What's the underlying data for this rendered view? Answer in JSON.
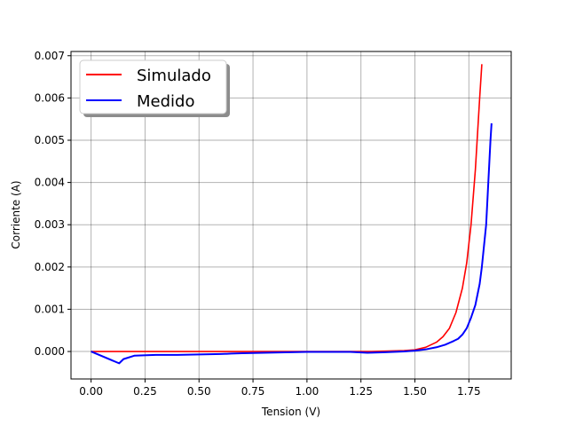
{
  "chart_data": {
    "type": "line",
    "title": "",
    "xlabel": "Tension (V)",
    "ylabel": "Corriente (A)",
    "xlim": [
      -0.093,
      1.946
    ],
    "ylim": [
      -0.00065,
      0.0071
    ],
    "x_ticks": [
      0.0,
      0.25,
      0.5,
      0.75,
      1.0,
      1.25,
      1.5,
      1.75
    ],
    "x_tick_labels": [
      "0.00",
      "0.25",
      "0.50",
      "0.75",
      "1.00",
      "1.25",
      "1.50",
      "1.75"
    ],
    "y_ticks": [
      0.0,
      0.001,
      0.002,
      0.003,
      0.004,
      0.005,
      0.006,
      0.007
    ],
    "y_tick_labels": [
      "0.000",
      "0.001",
      "0.002",
      "0.003",
      "0.004",
      "0.005",
      "0.006",
      "0.007"
    ],
    "grid": true,
    "legend_position": "top-left",
    "series": [
      {
        "name": "Simulado",
        "color": "#ff0000",
        "x": [
          0.0,
          0.5,
          1.0,
          1.3,
          1.45,
          1.5,
          1.55,
          1.6,
          1.63,
          1.66,
          1.69,
          1.72,
          1.74,
          1.76,
          1.78,
          1.8,
          1.81
        ],
        "y": [
          0.0,
          0.0,
          0.0,
          0.0,
          2e-05,
          4e-05,
          0.0001,
          0.00022,
          0.00035,
          0.00055,
          0.00092,
          0.0015,
          0.0021,
          0.003,
          0.0043,
          0.006,
          0.0068
        ]
      },
      {
        "name": "Medido",
        "color": "#0000ff",
        "x": [
          0.0,
          0.13,
          0.15,
          0.2,
          0.3,
          0.4,
          0.5,
          0.6,
          0.65,
          0.7,
          0.8,
          0.9,
          1.0,
          1.1,
          1.2,
          1.28,
          1.35,
          1.45,
          1.5,
          1.55,
          1.6,
          1.64,
          1.68,
          1.7,
          1.72,
          1.74,
          1.76,
          1.78,
          1.8,
          1.81,
          1.82,
          1.83,
          1.835,
          1.84,
          1.845,
          1.85,
          1.855
        ],
        "y": [
          0.0,
          -0.00028,
          -0.00018,
          -0.0001,
          -8e-05,
          -8e-05,
          -7e-05,
          -6e-05,
          -5e-05,
          -4e-05,
          -3e-05,
          -2e-05,
          -1e-05,
          -1e-05,
          -1e-05,
          -3e-05,
          -2e-05,
          0.0,
          2e-05,
          5e-05,
          0.0001,
          0.00016,
          0.00025,
          0.0003,
          0.0004,
          0.00055,
          0.0008,
          0.0011,
          0.0016,
          0.002,
          0.0025,
          0.003,
          0.0035,
          0.004,
          0.0045,
          0.005,
          0.0054
        ]
      }
    ]
  }
}
